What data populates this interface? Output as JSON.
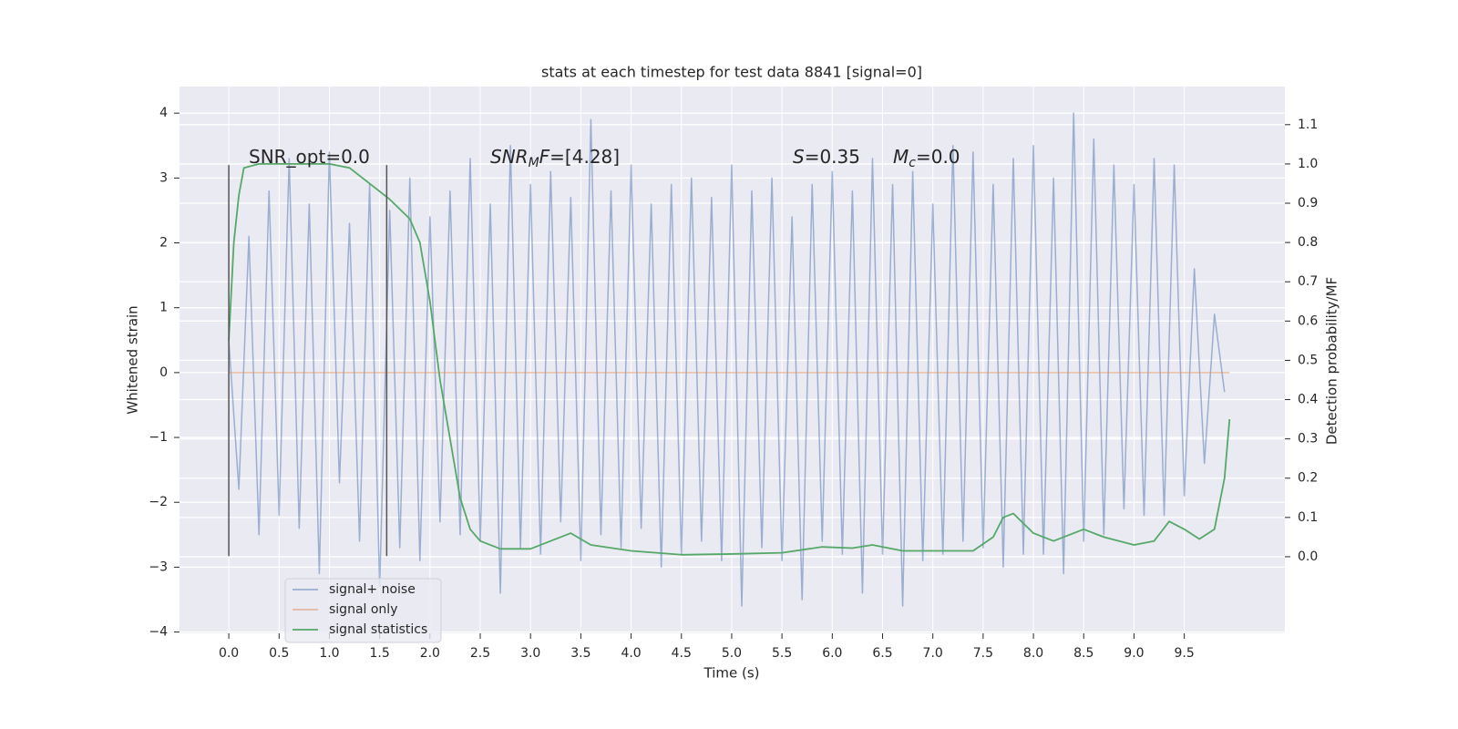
{
  "chart_data": {
    "type": "line",
    "title": "stats at each timestep for test data 8841 [signal=0]",
    "xlabel": "Time (s)",
    "ylabel": "Whitened strain",
    "y2label": "Detection probability/MF",
    "xlim": [
      -0.49,
      10.5
    ],
    "ylim": [
      -4.02,
      4.41
    ],
    "y2lim": [
      -0.195,
      1.197
    ],
    "xticks": [
      {
        "value": 0,
        "label": "0.0"
      },
      0.5,
      {
        "value": 1,
        "label": "1.0"
      },
      1.5,
      {
        "value": 2,
        "label": "2.0"
      },
      2.5,
      {
        "value": 3,
        "label": "3.0"
      },
      3.5,
      {
        "value": 4,
        "label": "4.0"
      },
      4.5,
      {
        "value": 5,
        "label": "5.0"
      },
      5.5,
      {
        "value": 6,
        "label": "6.0"
      },
      6.5,
      {
        "value": 7,
        "label": "7.0"
      },
      7.5,
      {
        "value": 8,
        "label": "8.0"
      },
      8.5,
      {
        "value": 9,
        "label": "9.0"
      },
      9.5
    ],
    "yticks": [
      {
        "value": -4,
        "label": "−4"
      },
      {
        "value": -3,
        "label": "−3"
      },
      {
        "value": -2,
        "label": "−2"
      },
      {
        "value": -1,
        "label": "−1"
      },
      0,
      1,
      2,
      3,
      4
    ],
    "y2ticks": [
      {
        "value": 0,
        "label": "0.0"
      },
      0.1,
      0.2,
      0.3,
      0.4,
      0.5,
      0.6,
      0.7,
      0.8,
      0.9,
      {
        "value": 1,
        "label": "1.0"
      },
      1.1
    ],
    "grid": true,
    "legend": "lower left",
    "series": [
      {
        "name": "signal+ noise",
        "color": "#4c72b0",
        "alpha": 0.5,
        "x": [
          0,
          0.1,
          0.2,
          0.3,
          0.4,
          0.5,
          0.6,
          0.7,
          0.8,
          0.9,
          1,
          1.1,
          1.2,
          1.3,
          1.4,
          1.5,
          1.6,
          1.7,
          1.8,
          1.9,
          2,
          2.1,
          2.2,
          2.3,
          2.4,
          2.5,
          2.6,
          2.7,
          2.8,
          2.9,
          3,
          3.1,
          3.2,
          3.3,
          3.4,
          3.5,
          3.6,
          3.7,
          3.8,
          3.9,
          4,
          4.1,
          4.2,
          4.3,
          4.4,
          4.5,
          4.6,
          4.7,
          4.8,
          4.9,
          5,
          5.1,
          5.2,
          5.3,
          5.4,
          5.5,
          5.6,
          5.7,
          5.8,
          5.9,
          6,
          6.1,
          6.2,
          6.3,
          6.4,
          6.5,
          6.6,
          6.7,
          6.8,
          6.9,
          7,
          7.1,
          7.2,
          7.3,
          7.4,
          7.5,
          7.6,
          7.7,
          7.8,
          7.9,
          8,
          8.1,
          8.2,
          8.3,
          8.4,
          8.5,
          8.6,
          8.7,
          8.8,
          8.9,
          9,
          9.1,
          9.2,
          9.3,
          9.4,
          9.5,
          9.6,
          9.7,
          9.8,
          9.9
        ],
        "values": [
          0.5,
          -1.8,
          2.1,
          -2.5,
          2.8,
          -2.2,
          3.3,
          -2.4,
          2.6,
          -3.1,
          3.4,
          -1.7,
          2.3,
          -2.6,
          2.9,
          -3.3,
          2.5,
          -2.7,
          3.0,
          -2.9,
          2.4,
          -2.3,
          2.8,
          -2.5,
          3.3,
          -2.6,
          2.6,
          -3.4,
          3.5,
          -2.7,
          2.9,
          -2.8,
          3.1,
          -2.3,
          2.7,
          -2.9,
          3.9,
          -2.5,
          2.8,
          -2.7,
          3.2,
          -2.4,
          2.6,
          -3.0,
          2.9,
          -2.8,
          3.0,
          -2.6,
          2.7,
          -2.9,
          3.2,
          -3.6,
          2.8,
          -2.7,
          3.0,
          -2.9,
          2.4,
          -3.5,
          2.9,
          -2.6,
          3.1,
          -2.8,
          2.8,
          -3.4,
          3.3,
          -2.8,
          2.9,
          -3.6,
          3.1,
          -2.9,
          2.6,
          -2.8,
          3.5,
          -2.6,
          3.4,
          -2.7,
          2.9,
          -3.0,
          3.3,
          -2.8,
          3.5,
          -2.8,
          3.0,
          -3.1,
          4.0,
          -2.6,
          3.6,
          -2.5,
          3.2,
          -2.1,
          2.9,
          -2.2,
          3.3,
          -2.2,
          3.2,
          -1.9,
          1.6,
          -1.4,
          0.9,
          -0.3
        ]
      },
      {
        "name": "signal only",
        "color": "#dd8452",
        "alpha": 0.5,
        "x": [
          0,
          9.95
        ],
        "values": [
          0,
          0
        ]
      },
      {
        "name": "signal statistics",
        "color": "#55a868",
        "axis": "y2",
        "x": [
          0,
          0.05,
          0.1,
          0.15,
          0.3,
          1,
          1.2,
          1.4,
          1.6,
          1.8,
          1.9,
          2,
          2.1,
          2.2,
          2.3,
          2.4,
          2.5,
          2.7,
          3,
          3.2,
          3.4,
          3.6,
          4,
          4.5,
          5,
          5.5,
          5.9,
          6.2,
          6.4,
          6.7,
          7,
          7.4,
          7.6,
          7.7,
          7.8,
          8,
          8.2,
          8.5,
          8.7,
          9,
          9.2,
          9.35,
          9.5,
          9.65,
          9.8,
          9.9,
          9.95
        ],
        "values": [
          0.55,
          0.8,
          0.92,
          0.99,
          1,
          1,
          0.99,
          0.95,
          0.91,
          0.86,
          0.8,
          0.65,
          0.45,
          0.3,
          0.15,
          0.07,
          0.04,
          0.02,
          0.02,
          0.04,
          0.06,
          0.03,
          0.015,
          0.005,
          0.007,
          0.01,
          0.025,
          0.022,
          0.03,
          0.015,
          0.015,
          0.015,
          0.05,
          0.1,
          0.11,
          0.06,
          0.04,
          0.07,
          0.05,
          0.03,
          0.04,
          0.09,
          0.07,
          0.045,
          0.07,
          0.2,
          0.35
        ]
      }
    ],
    "vlines": {
      "color": "#555555",
      "lines": [
        {
          "x": 0,
          "ymin": -2.83,
          "ymax": 3.2
        },
        {
          "x": 1.57,
          "ymin": -2.83,
          "ymax": 3.2
        }
      ]
    },
    "annotations": [
      [
        {
          "text": "SNR_opt=0.0"
        }
      ],
      [
        {
          "text": "SNR",
          "italic": true
        },
        {
          "text": "M",
          "italic": true,
          "sub": true
        },
        {
          "text": "F",
          "italic": true
        },
        {
          "text": "=[4.28]"
        }
      ],
      [
        {
          "text": "S",
          "italic": true
        },
        {
          "text": "=0.35"
        }
      ],
      [
        {
          "text": "M",
          "italic": true
        },
        {
          "text": "c",
          "italic": true,
          "sub": true
        },
        {
          "text": "=0.0"
        }
      ]
    ]
  }
}
